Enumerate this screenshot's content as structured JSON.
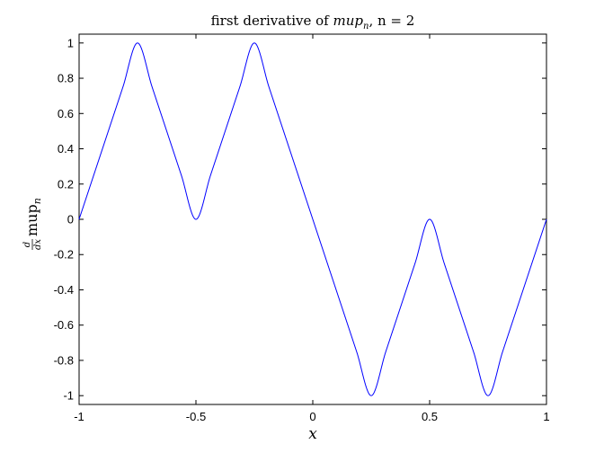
{
  "chart_data": {
    "type": "line",
    "title": {
      "prefix": "first derivative of ",
      "func": "mup",
      "sub": "n",
      "suffix": ", n = 2"
    },
    "xlabel": "x",
    "ylabel": {
      "frac_num": "d",
      "frac_den": "dx",
      "func": "mup",
      "sub": "n"
    },
    "xlim": [
      -1,
      1
    ],
    "ylim": [
      -1.05,
      1.05
    ],
    "xticks": [
      -1,
      -0.5,
      0,
      0.5,
      1
    ],
    "xtick_labels": [
      "-1",
      "-0.5",
      "0",
      "0.5",
      "1"
    ],
    "yticks": [
      -1,
      -0.8,
      -0.6,
      -0.4,
      -0.2,
      0,
      0.2,
      0.4,
      0.6,
      0.8,
      1
    ],
    "ytick_labels": [
      "-1",
      "-0.8",
      "-0.6",
      "-0.4",
      "-0.2",
      "0",
      "0.2",
      "0.4",
      "0.6",
      "0.8",
      "1"
    ],
    "grid": false,
    "series": [
      {
        "color": "#0000ff",
        "x": [
          -1,
          -0.9375,
          -0.875,
          -0.8125,
          -0.75,
          -0.6875,
          -0.625,
          -0.5625,
          -0.5,
          -0.4375,
          -0.375,
          -0.3125,
          -0.25,
          -0.1875,
          -0.125,
          -0.0625,
          0,
          0.0625,
          0.125,
          0.1875,
          0.25,
          0.3125,
          0.375,
          0.4375,
          0.5,
          0.5625,
          0.625,
          0.6875,
          0.75,
          0.8125,
          0.875,
          0.9375,
          1
        ],
        "y": [
          0,
          0.25,
          0.5,
          0.75,
          1,
          0.75,
          0.5,
          0.25,
          0,
          0.25,
          0.5,
          0.75,
          1,
          0.75,
          0.5,
          0.25,
          0,
          -0.25,
          -0.5,
          -0.75,
          -1,
          -0.75,
          -0.5,
          -0.25,
          0,
          -0.25,
          -0.5,
          -0.75,
          -1,
          -0.75,
          -0.5,
          -0.25,
          0
        ]
      }
    ]
  }
}
